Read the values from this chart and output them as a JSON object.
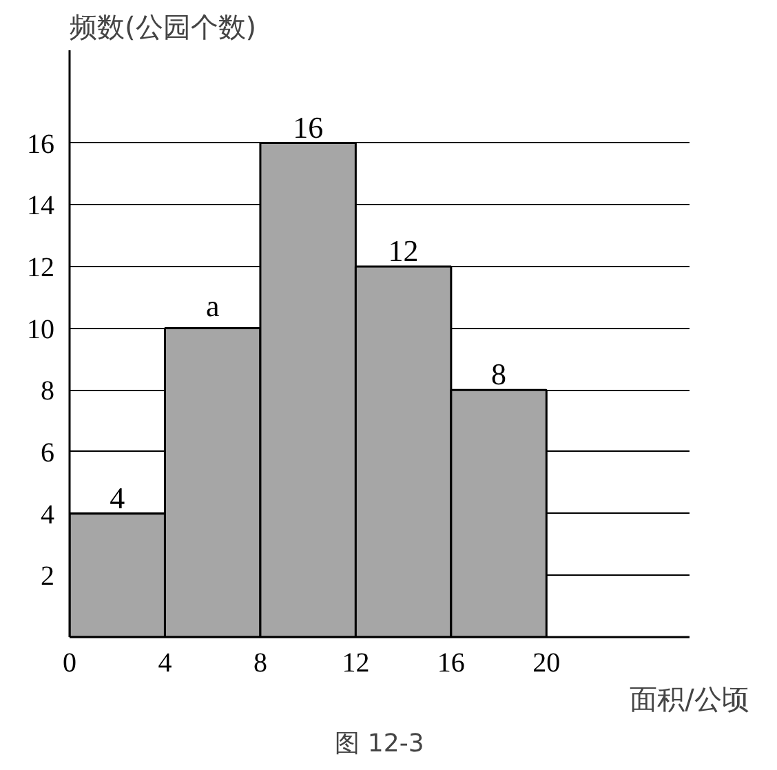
{
  "chart_data": {
    "type": "histogram",
    "ylabel": "频数(公园个数)",
    "xlabel": "面积/公顷",
    "annotations": [
      "图 12-3"
    ],
    "bins": [
      0,
      4,
      8,
      12,
      16,
      20
    ],
    "values": [
      4,
      10,
      16,
      12,
      8
    ],
    "value_labels": [
      "4",
      "a",
      "16",
      "12",
      "8"
    ],
    "color": "#a6a6a6",
    "xlim": [
      0,
      26
    ],
    "ylim": [
      0,
      19
    ],
    "xticks": [
      0,
      4,
      8,
      12,
      16,
      20
    ],
    "yticks": [
      2,
      4,
      6,
      8,
      10,
      12,
      14,
      16
    ],
    "grid": "y"
  }
}
